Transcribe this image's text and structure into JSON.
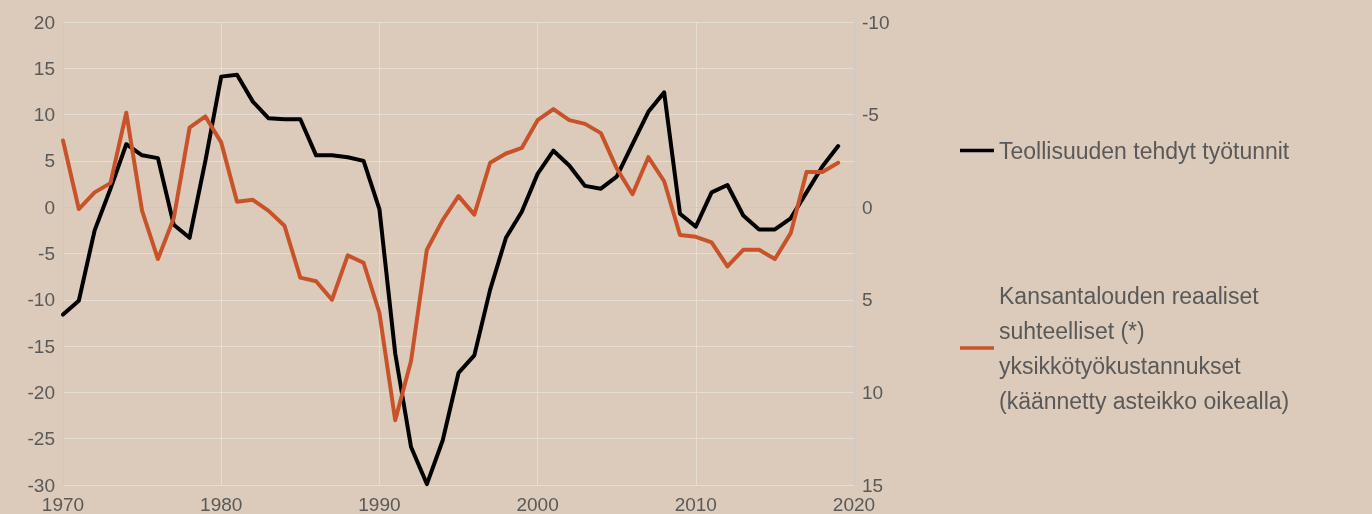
{
  "chart_data": {
    "type": "line",
    "x": [
      1970,
      1971,
      1972,
      1973,
      1974,
      1975,
      1976,
      1977,
      1978,
      1979,
      1980,
      1981,
      1982,
      1983,
      1984,
      1985,
      1986,
      1987,
      1988,
      1989,
      1990,
      1991,
      1992,
      1993,
      1994,
      1995,
      1996,
      1997,
      1998,
      1999,
      2000,
      2001,
      2002,
      2003,
      2004,
      2005,
      2006,
      2007,
      2008,
      2009,
      2010,
      2011,
      2012,
      2013,
      2014,
      2015,
      2016,
      2017,
      2018,
      2019
    ],
    "series": [
      {
        "name": "Teollisuuden tehdyt työtunnit",
        "color": "#000000",
        "values": [
          -11.6,
          -10.1,
          -2.5,
          2.0,
          6.8,
          5.6,
          5.3,
          -1.9,
          -3.3,
          5.0,
          14.1,
          14.3,
          11.4,
          9.6,
          9.5,
          9.5,
          5.6,
          5.6,
          5.4,
          5.0,
          -0.2,
          -15.8,
          -25.9,
          -29.9,
          -25.2,
          -17.9,
          -16.0,
          -8.9,
          -3.3,
          -0.5,
          3.6,
          6.1,
          4.5,
          2.3,
          2.0,
          3.3,
          6.8,
          10.3,
          12.4,
          -0.7,
          -2.1,
          1.6,
          2.4,
          -0.9,
          -2.4,
          -2.4,
          -1.2,
          1.6,
          4.4,
          6.6
        ]
      },
      {
        "name": "Kansantalouden reaaliset suhteelliset (*) yksikkötyökustannukset (käännetty asteikko oikealla)",
        "color": "#c8532a",
        "axis": "y2",
        "values": [
          -3.6,
          0.1,
          -0.8,
          -1.3,
          -5.1,
          0.2,
          2.8,
          0.6,
          -4.3,
          -4.9,
          -3.5,
          -0.3,
          -0.4,
          0.2,
          1.0,
          3.8,
          4.0,
          5.0,
          2.6,
          3.0,
          5.7,
          11.5,
          8.3,
          2.3,
          0.7,
          -0.6,
          0.4,
          -2.4,
          -2.9,
          -3.2,
          -4.7,
          -5.3,
          -4.7,
          -4.5,
          -4.0,
          -2.1,
          -0.7,
          -2.7,
          -1.4,
          1.5,
          1.6,
          1.9,
          3.2,
          2.3,
          2.3,
          2.8,
          1.4,
          -1.9,
          -1.9,
          -2.4
        ]
      }
    ],
    "xlim": [
      1970,
      2020
    ],
    "xticks": [
      1970,
      1980,
      1990,
      2000,
      2010,
      2020
    ],
    "ylim": [
      -30,
      20
    ],
    "yticks": [
      -30,
      -25,
      -20,
      -15,
      -10,
      -5,
      0,
      5,
      10,
      15,
      20
    ],
    "y2lim": [
      15,
      -10
    ],
    "y2ticks": [
      15,
      10,
      5,
      0,
      -5,
      -10
    ],
    "grid": true,
    "legend": "right",
    "marker": "none",
    "line_style": "solid"
  }
}
